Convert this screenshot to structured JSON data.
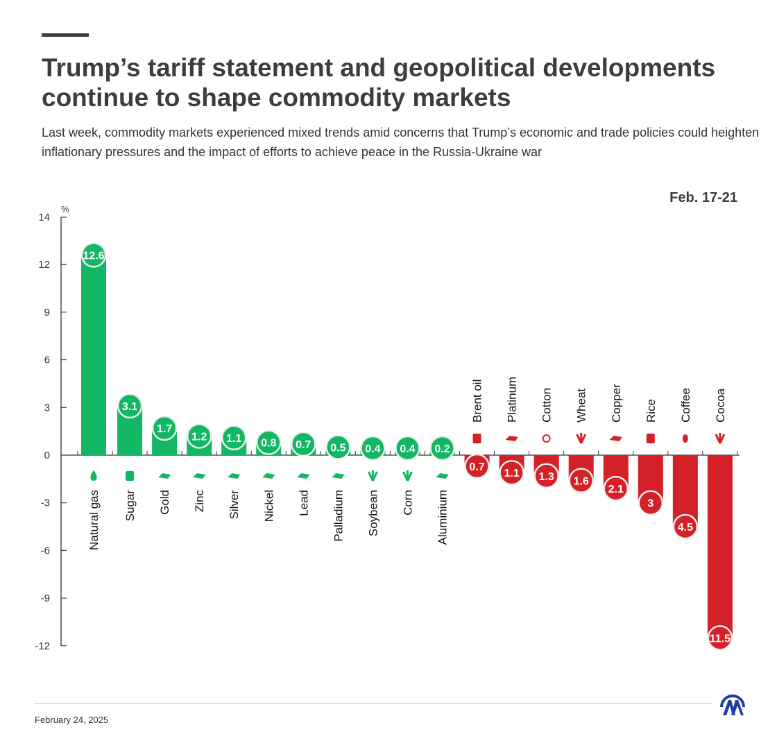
{
  "header": {
    "title": "Trump’s tariff statement and geopolitical developments continue to shape commodity markets",
    "subtitle": "Last week, commodity markets experienced mixed trends amid concerns that Trump’s economic and trade policies could heighten inflationary pressures and the impact of efforts to achieve peace in the Russia-Ukraine war",
    "period": "Feb. 17-21"
  },
  "footer": {
    "date": "February 24, 2025",
    "logo_text": "AA"
  },
  "colors": {
    "positive": "#12b764",
    "negative": "#d42027",
    "text": "#3d3d3d"
  },
  "chart_data": {
    "type": "bar",
    "ylabel": "%",
    "ylim": [
      -12,
      14
    ],
    "yticks": [
      14,
      12,
      9,
      6,
      3,
      0,
      -3,
      -6,
      -9,
      -12
    ],
    "grid": false,
    "categories": [
      "Natural gas",
      "Sugar",
      "Gold",
      "Zinc",
      "Silver",
      "Nickel",
      "Lead",
      "Palladium",
      "Soybean",
      "Corn",
      "Aluminium",
      "Brent oil",
      "Platinum",
      "Cotton",
      "Wheat",
      "Copper",
      "Rice",
      "Coffee",
      "Cocoa"
    ],
    "values": [
      12.6,
      3.1,
      1.7,
      1.2,
      1.1,
      0.8,
      0.7,
      0.5,
      0.4,
      0.4,
      0.2,
      -0.7,
      -1.1,
      -1.3,
      -1.6,
      -2.1,
      -3,
      -4.5,
      -11.5
    ],
    "data_labels": [
      "12.6",
      "3.1",
      "1.7",
      "1.2",
      "1.1",
      "0.8",
      "0.7",
      "0.5",
      "0.4",
      "0.4",
      "0.2",
      "0.7",
      "1.1",
      "1.3",
      "1.6",
      "2.1",
      "3",
      "4.5",
      "11.5"
    ],
    "icons": [
      "flame-icon",
      "sugar-sack-icon",
      "ingot-icon",
      "ingot-icon",
      "ingot-icon",
      "ingot-icon",
      "ingot-icon",
      "ingot-icon",
      "soybean-icon",
      "corn-icon",
      "ingot-icon",
      "oil-can-icon",
      "ingot-icon",
      "cotton-icon",
      "wheat-icon",
      "ingot-icon",
      "rice-sack-icon",
      "coffee-bean-icon",
      "cocoa-icon"
    ]
  }
}
